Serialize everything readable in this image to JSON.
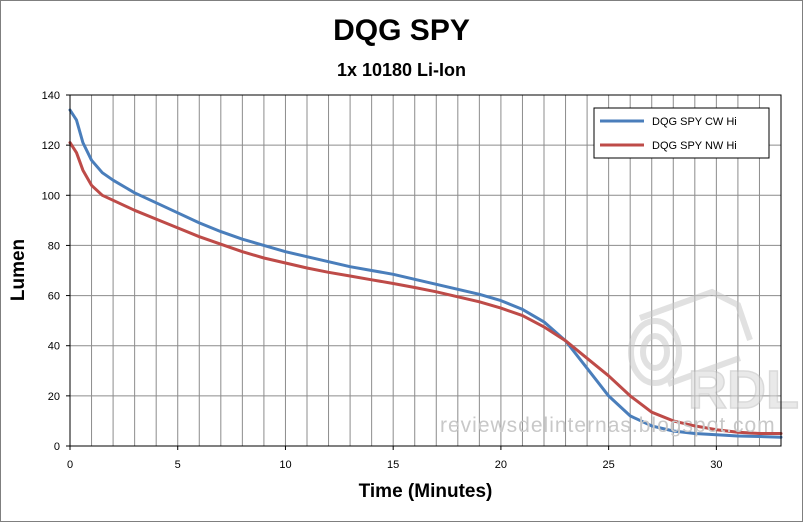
{
  "chart_data": {
    "type": "line",
    "title": "DQG SPY",
    "subtitle": "1x 10180 Li-Ion",
    "xlabel": "Time (Minutes)",
    "ylabel": "Lumen",
    "xlim": [
      0,
      33
    ],
    "ylim": [
      0,
      140
    ],
    "xticks": [
      0,
      5,
      10,
      15,
      20,
      25,
      30
    ],
    "yticks": [
      0,
      20,
      40,
      60,
      80,
      100,
      120,
      140
    ],
    "grid": "vertical lines every 1 minute, horizontal lines every 20 lumen",
    "legend_position": "top-right",
    "series": [
      {
        "name": "DQG SPY CW Hi",
        "color": "#4a7ebb",
        "points": [
          [
            0,
            134
          ],
          [
            0.3,
            130
          ],
          [
            0.6,
            121
          ],
          [
            1,
            114
          ],
          [
            1.5,
            109
          ],
          [
            2,
            106
          ],
          [
            3,
            101
          ],
          [
            4,
            97
          ],
          [
            5,
            93
          ],
          [
            6,
            89
          ],
          [
            7,
            85.5
          ],
          [
            8,
            82.5
          ],
          [
            9,
            80
          ],
          [
            10,
            77.5
          ],
          [
            11,
            75.5
          ],
          [
            12,
            73.5
          ],
          [
            13,
            71.5
          ],
          [
            14,
            70
          ],
          [
            15,
            68.5
          ],
          [
            16,
            66.5
          ],
          [
            17,
            64.5
          ],
          [
            18,
            62.5
          ],
          [
            19,
            60.5
          ],
          [
            20,
            58
          ],
          [
            21,
            54.5
          ],
          [
            22,
            49.5
          ],
          [
            23,
            42
          ],
          [
            24,
            31
          ],
          [
            25,
            20
          ],
          [
            26,
            12
          ],
          [
            27,
            8
          ],
          [
            28,
            6
          ],
          [
            29,
            5
          ],
          [
            30,
            4.5
          ],
          [
            31,
            4
          ],
          [
            32,
            3.8
          ],
          [
            33,
            3.5
          ]
        ]
      },
      {
        "name": "DQG SPY NW Hi",
        "color": "#be4b48",
        "points": [
          [
            0,
            121
          ],
          [
            0.3,
            117
          ],
          [
            0.6,
            110
          ],
          [
            1,
            104
          ],
          [
            1.5,
            100
          ],
          [
            2,
            98
          ],
          [
            3,
            94
          ],
          [
            4,
            90.5
          ],
          [
            5,
            87
          ],
          [
            6,
            83.5
          ],
          [
            7,
            80.5
          ],
          [
            8,
            77.5
          ],
          [
            9,
            75
          ],
          [
            10,
            73
          ],
          [
            11,
            71
          ],
          [
            12,
            69.3
          ],
          [
            13,
            67.8
          ],
          [
            14,
            66.3
          ],
          [
            15,
            64.8
          ],
          [
            16,
            63.2
          ],
          [
            17,
            61.5
          ],
          [
            18,
            59.5
          ],
          [
            19,
            57.5
          ],
          [
            20,
            55
          ],
          [
            21,
            52
          ],
          [
            22,
            47.5
          ],
          [
            23,
            42
          ],
          [
            24,
            35
          ],
          [
            25,
            28
          ],
          [
            26,
            20
          ],
          [
            27,
            13.5
          ],
          [
            28,
            10
          ],
          [
            29,
            8
          ],
          [
            30,
            6.5
          ],
          [
            31,
            5.5
          ],
          [
            32,
            5
          ],
          [
            33,
            5
          ]
        ]
      }
    ]
  },
  "watermark": {
    "logo_text": "RDL",
    "site_text": "reviewsdelinternas.blogspot.com"
  }
}
